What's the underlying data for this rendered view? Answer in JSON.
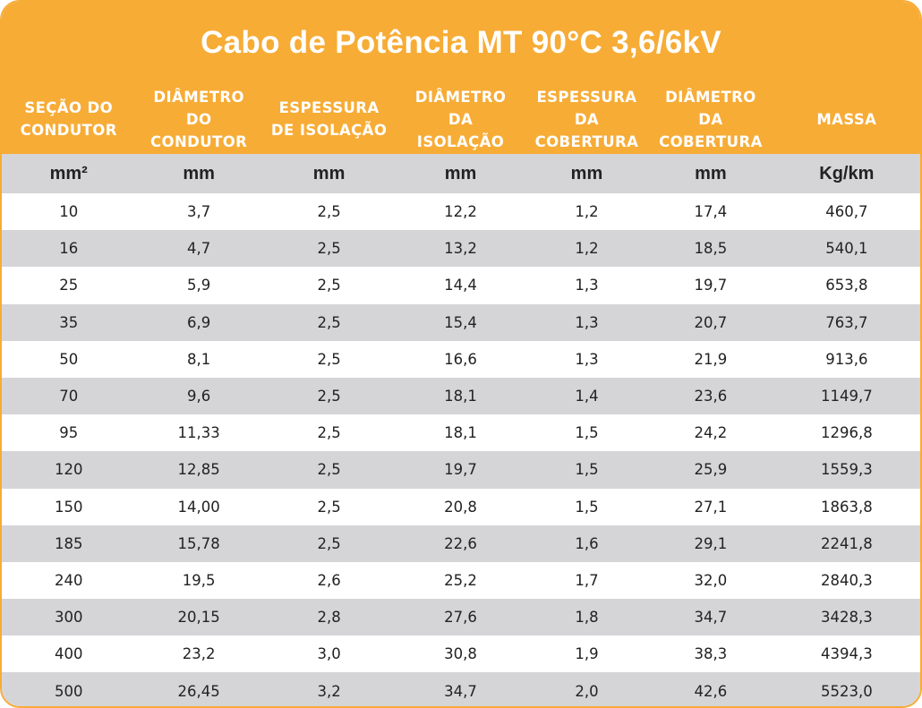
{
  "title": "Cabo de Potência MT 90°C 3,6/6kV",
  "columns": [
    "SEÇÃO DO\nCONDUTOR",
    "DIÂMETRO\nDO\nCONDUTOR",
    "ESPESSURA\nDE ISOLAÇÃO",
    "DIÂMETRO\nDA\nISOLAÇÃO",
    "ESPESSURA\nDA\nCOBERTURA",
    "DIÂMETRO\nDA\nCOBERTURA",
    "MASSA"
  ],
  "units": [
    "mm²",
    "mm",
    "mm",
    "mm",
    "mm",
    "mm",
    "Kg/km"
  ],
  "rows": [
    [
      "10",
      "3,7",
      "2,5",
      "12,2",
      "1,2",
      "17,4",
      "460,7"
    ],
    [
      "16",
      "4,7",
      "2,5",
      "13,2",
      "1,2",
      "18,5",
      "540,1"
    ],
    [
      "25",
      "5,9",
      "2,5",
      "14,4",
      "1,3",
      "19,7",
      "653,8"
    ],
    [
      "35",
      "6,9",
      "2,5",
      "15,4",
      "1,3",
      "20,7",
      "763,7"
    ],
    [
      "50",
      "8,1",
      "2,5",
      "16,6",
      "1,3",
      "21,9",
      "913,6"
    ],
    [
      "70",
      "9,6",
      "2,5",
      "18,1",
      "1,4",
      "23,6",
      "1149,7"
    ],
    [
      "95",
      "11,33",
      "2,5",
      "18,1",
      "1,5",
      "24,2",
      "1296,8"
    ],
    [
      "120",
      "12,85",
      "2,5",
      "19,7",
      "1,5",
      "25,9",
      "1559,3"
    ],
    [
      "150",
      "14,00",
      "2,5",
      "20,8",
      "1,5",
      "27,1",
      "1863,8"
    ],
    [
      "185",
      "15,78",
      "2,5",
      "22,6",
      "1,6",
      "29,1",
      "2241,8"
    ],
    [
      "240",
      "19,5",
      "2,6",
      "25,2",
      "1,7",
      "32,0",
      "2840,3"
    ],
    [
      "300",
      "20,15",
      "2,8",
      "27,6",
      "1,8",
      "34,7",
      "3428,3"
    ],
    [
      "400",
      "23,2",
      "3,0",
      "30,8",
      "1,9",
      "38,3",
      "4394,3"
    ],
    [
      "500",
      "26,45",
      "3,2",
      "34,7",
      "2,0",
      "42,6",
      "5523,0"
    ]
  ],
  "colors": {
    "accent": "#f7ac36",
    "stripe": "#d5d5d8",
    "text": "#222222"
  }
}
